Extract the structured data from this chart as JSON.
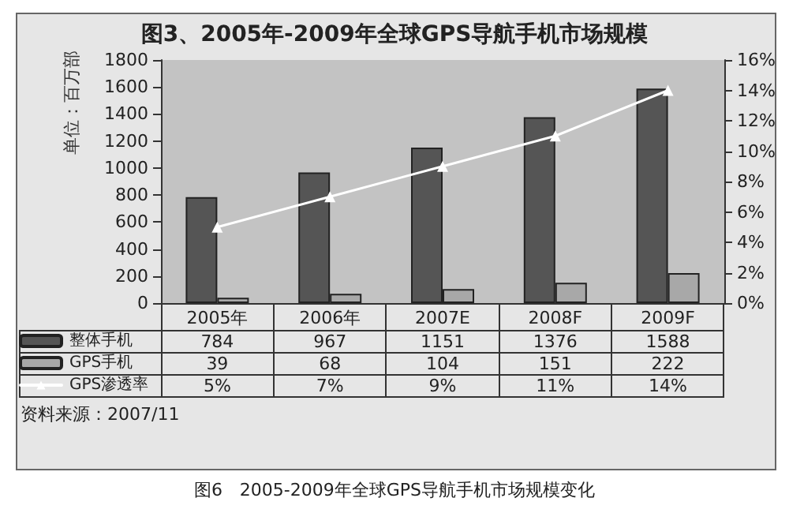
{
  "chart_data": {
    "type": "bar",
    "title": "图3、2005年-2009年全球GPS导航手机市场规模",
    "ylabel": "单位：百万部",
    "categories": [
      "2005年",
      "2006年",
      "2007E",
      "2008F",
      "2009F"
    ],
    "series": [
      {
        "name": "整体手机",
        "color": "#555555",
        "values": [
          784,
          967,
          1151,
          1376,
          1588
        ]
      },
      {
        "name": "GPS手机",
        "color": "#a8a8a8",
        "values": [
          39,
          68,
          104,
          151,
          222
        ]
      },
      {
        "name": "GPS渗透率",
        "type": "line",
        "axis": "y2",
        "color": "#ffffff",
        "marker": "triangle",
        "values": [
          5,
          7,
          9,
          11,
          14
        ],
        "value_labels": [
          "5%",
          "7%",
          "9%",
          "11%",
          "14%"
        ]
      }
    ],
    "ylim": [
      0,
      1800
    ],
    "yticks": [
      0,
      200,
      400,
      600,
      800,
      1000,
      1200,
      1400,
      1600,
      1800
    ],
    "y2lim": [
      0,
      16
    ],
    "y2ticks": [
      {
        "value": 0,
        "label": "0%"
      },
      {
        "value": 2,
        "label": "2%"
      },
      {
        "value": 4,
        "label": "4%"
      },
      {
        "value": 6,
        "label": "6%"
      },
      {
        "value": 8,
        "label": "8%"
      },
      {
        "value": 10,
        "label": "10%"
      },
      {
        "value": 12,
        "label": "12%"
      },
      {
        "value": 14,
        "label": "14%"
      },
      {
        "value": 16,
        "label": "16%"
      }
    ],
    "legend": "bottom left",
    "data_labels": true,
    "annotations": [
      "资料来源：2007/11",
      "图6　2005-2009年全球GPS导航手机市场规模变化"
    ]
  }
}
